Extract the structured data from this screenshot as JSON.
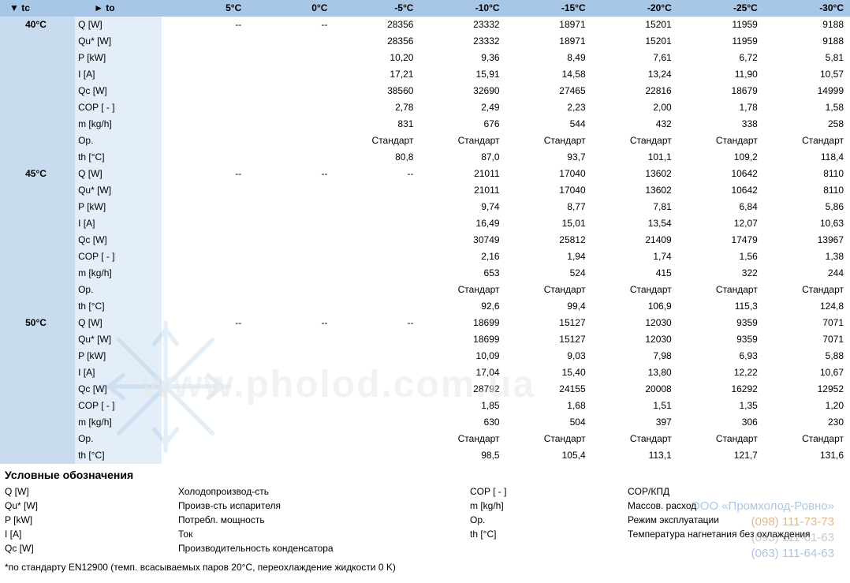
{
  "header": {
    "tc_label": "▼ tc",
    "to_label": "► to",
    "columns": [
      "5°C",
      "0°C",
      "-5°C",
      "-10°C",
      "-15°C",
      "-20°C",
      "-25°C",
      "-30°C"
    ]
  },
  "groups": [
    {
      "tc": "40°C",
      "rows": [
        {
          "to": "Q [W]",
          "values": [
            "--",
            "--",
            "28356",
            "23332",
            "18971",
            "15201",
            "11959",
            "9188"
          ]
        },
        {
          "to": "Qu* [W]",
          "values": [
            "",
            "",
            "28356",
            "23332",
            "18971",
            "15201",
            "11959",
            "9188"
          ]
        },
        {
          "to": "P [kW]",
          "values": [
            "",
            "",
            "10,20",
            "9,36",
            "8,49",
            "7,61",
            "6,72",
            "5,81"
          ]
        },
        {
          "to": "I [A]",
          "values": [
            "",
            "",
            "17,21",
            "15,91",
            "14,58",
            "13,24",
            "11,90",
            "10,57"
          ]
        },
        {
          "to": "Qc [W]",
          "values": [
            "",
            "",
            "38560",
            "32690",
            "27465",
            "22816",
            "18679",
            "14999"
          ]
        },
        {
          "to": "COP [ - ]",
          "values": [
            "",
            "",
            "2,78",
            "2,49",
            "2,23",
            "2,00",
            "1,78",
            "1,58"
          ]
        },
        {
          "to": "m [kg/h]",
          "values": [
            "",
            "",
            "831",
            "676",
            "544",
            "432",
            "338",
            "258"
          ]
        },
        {
          "to": "Op.",
          "values": [
            "",
            "",
            "Стандарт",
            "Стандарт",
            "Стандарт",
            "Стандарт",
            "Стандарт",
            "Стандарт"
          ]
        },
        {
          "to": "th [°C]",
          "values": [
            "",
            "",
            "80,8",
            "87,0",
            "93,7",
            "101,1",
            "109,2",
            "118,4"
          ]
        }
      ]
    },
    {
      "tc": "45°C",
      "rows": [
        {
          "to": "Q [W]",
          "values": [
            "--",
            "--",
            "--",
            "21011",
            "17040",
            "13602",
            "10642",
            "8110"
          ]
        },
        {
          "to": "Qu* [W]",
          "values": [
            "",
            "",
            "",
            "21011",
            "17040",
            "13602",
            "10642",
            "8110"
          ]
        },
        {
          "to": "P [kW]",
          "values": [
            "",
            "",
            "",
            "9,74",
            "8,77",
            "7,81",
            "6,84",
            "5,86"
          ]
        },
        {
          "to": "I [A]",
          "values": [
            "",
            "",
            "",
            "16,49",
            "15,01",
            "13,54",
            "12,07",
            "10,63"
          ]
        },
        {
          "to": "Qc [W]",
          "values": [
            "",
            "",
            "",
            "30749",
            "25812",
            "21409",
            "17479",
            "13967"
          ]
        },
        {
          "to": "COP [ - ]",
          "values": [
            "",
            "",
            "",
            "2,16",
            "1,94",
            "1,74",
            "1,56",
            "1,38"
          ]
        },
        {
          "to": "m [kg/h]",
          "values": [
            "",
            "",
            "",
            "653",
            "524",
            "415",
            "322",
            "244"
          ]
        },
        {
          "to": "Op.",
          "values": [
            "",
            "",
            "",
            "Стандарт",
            "Стандарт",
            "Стандарт",
            "Стандарт",
            "Стандарт"
          ]
        },
        {
          "to": "th [°C]",
          "values": [
            "",
            "",
            "",
            "92,6",
            "99,4",
            "106,9",
            "115,3",
            "124,8"
          ]
        }
      ]
    },
    {
      "tc": "50°C",
      "rows": [
        {
          "to": "Q [W]",
          "values": [
            "--",
            "--",
            "--",
            "18699",
            "15127",
            "12030",
            "9359",
            "7071"
          ]
        },
        {
          "to": "Qu* [W]",
          "values": [
            "",
            "",
            "",
            "18699",
            "15127",
            "12030",
            "9359",
            "7071"
          ]
        },
        {
          "to": "P [kW]",
          "values": [
            "",
            "",
            "",
            "10,09",
            "9,03",
            "7,98",
            "6,93",
            "5,88"
          ]
        },
        {
          "to": "I [A]",
          "values": [
            "",
            "",
            "",
            "17,04",
            "15,40",
            "13,80",
            "12,22",
            "10,67"
          ]
        },
        {
          "to": "Qc [W]",
          "values": [
            "",
            "",
            "",
            "28792",
            "24155",
            "20008",
            "16292",
            "12952"
          ]
        },
        {
          "to": "COP [ - ]",
          "values": [
            "",
            "",
            "",
            "1,85",
            "1,68",
            "1,51",
            "1,35",
            "1,20"
          ]
        },
        {
          "to": "m [kg/h]",
          "values": [
            "",
            "",
            "",
            "630",
            "504",
            "397",
            "306",
            "230"
          ]
        },
        {
          "to": "Op.",
          "values": [
            "",
            "",
            "",
            "Стандарт",
            "Стандарт",
            "Стандарт",
            "Стандарт",
            "Стандарт"
          ]
        },
        {
          "to": "th [°C]",
          "values": [
            "",
            "",
            "",
            "98,5",
            "105,4",
            "113,1",
            "121,7",
            "131,6"
          ]
        }
      ]
    }
  ],
  "legend": {
    "title": "Условные обозначения",
    "items": [
      {
        "sym": "Q [W]",
        "desc": "Холодопроизвод-сть"
      },
      {
        "sym": "Qu* [W]",
        "desc": "Произв-сть испарителя"
      },
      {
        "sym": "P [kW]",
        "desc": "Потребл. мощность"
      },
      {
        "sym": "I [A]",
        "desc": "Ток"
      },
      {
        "sym": "Qc [W]",
        "desc": "Производительность конденсатора"
      }
    ],
    "items2": [
      {
        "sym": "COP [ - ]",
        "desc": "COP/КПД"
      },
      {
        "sym": "m [kg/h]",
        "desc": "Массов. расход"
      },
      {
        "sym": "Op.",
        "desc": "Режим эксплуатации"
      },
      {
        "sym": "th [°C]",
        "desc": "Температура нагнетания без охлаждения"
      }
    ],
    "footnote": "*по стандарту EN12900 (темп. всасываемых паров 20°C, переохлаждение жидкости 0 K)"
  },
  "watermark": "www.pholod.com.ua",
  "contact": {
    "company": "ООО «Промхолод-Ровно»",
    "phone1": "(098) 111-73-73",
    "phone2": "(093) 111-61-63",
    "phone3": "(063) 111-64-63"
  },
  "colors": {
    "header_bg": "#a8c6e6",
    "tc_bg": "#c9dcef",
    "to_bg": "#e4eef8"
  }
}
